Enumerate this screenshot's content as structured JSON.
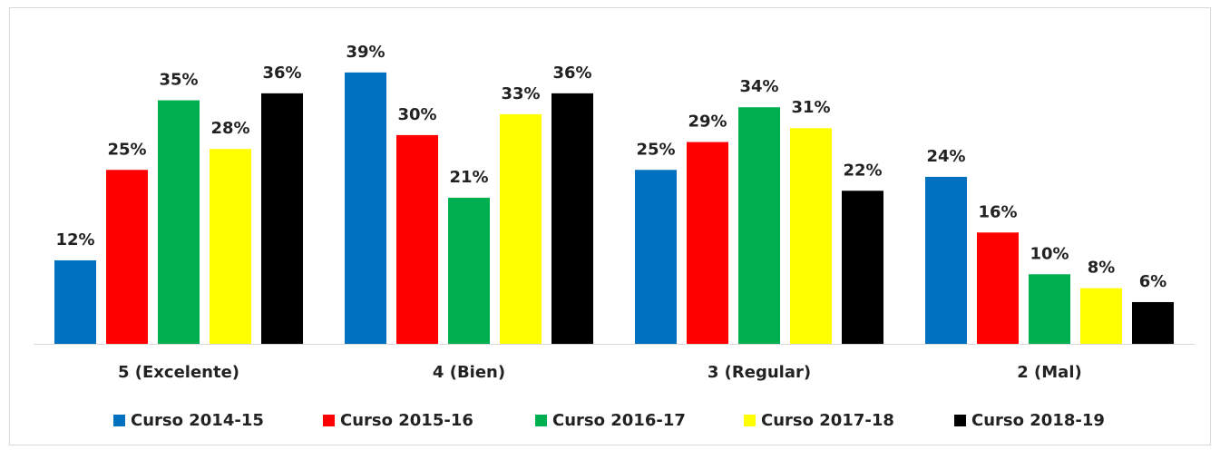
{
  "chart_data": {
    "type": "bar",
    "categories": [
      "5 (Excelente)",
      "4 (Bien)",
      "3 (Regular)",
      "2 (Mal)"
    ],
    "series": [
      {
        "name": "Curso 2014-15",
        "color": "#0070c0",
        "values": [
          12,
          39,
          25,
          24
        ],
        "value_labels": [
          "12%",
          "39%",
          "25%",
          "24%"
        ]
      },
      {
        "name": "Curso 2015-16",
        "color": "#ff0000",
        "values": [
          25,
          30,
          29,
          16
        ],
        "value_labels": [
          "25%",
          "30%",
          "29%",
          "16%"
        ]
      },
      {
        "name": "Curso 2016-17",
        "color": "#00b050",
        "values": [
          35,
          21,
          34,
          10
        ],
        "value_labels": [
          "35%",
          "21%",
          "34%",
          "10%"
        ]
      },
      {
        "name": "Curso 2017-18",
        "color": "#ffff00",
        "values": [
          28,
          33,
          31,
          8
        ],
        "value_labels": [
          "28%",
          "33%",
          "31%",
          "8%"
        ]
      },
      {
        "name": "Curso 2018-19",
        "color": "#000000",
        "values": [
          36,
          36,
          22,
          6
        ],
        "value_labels": [
          "36%",
          "36%",
          "22%",
          "6%"
        ]
      }
    ],
    "legend": "bottom"
  }
}
